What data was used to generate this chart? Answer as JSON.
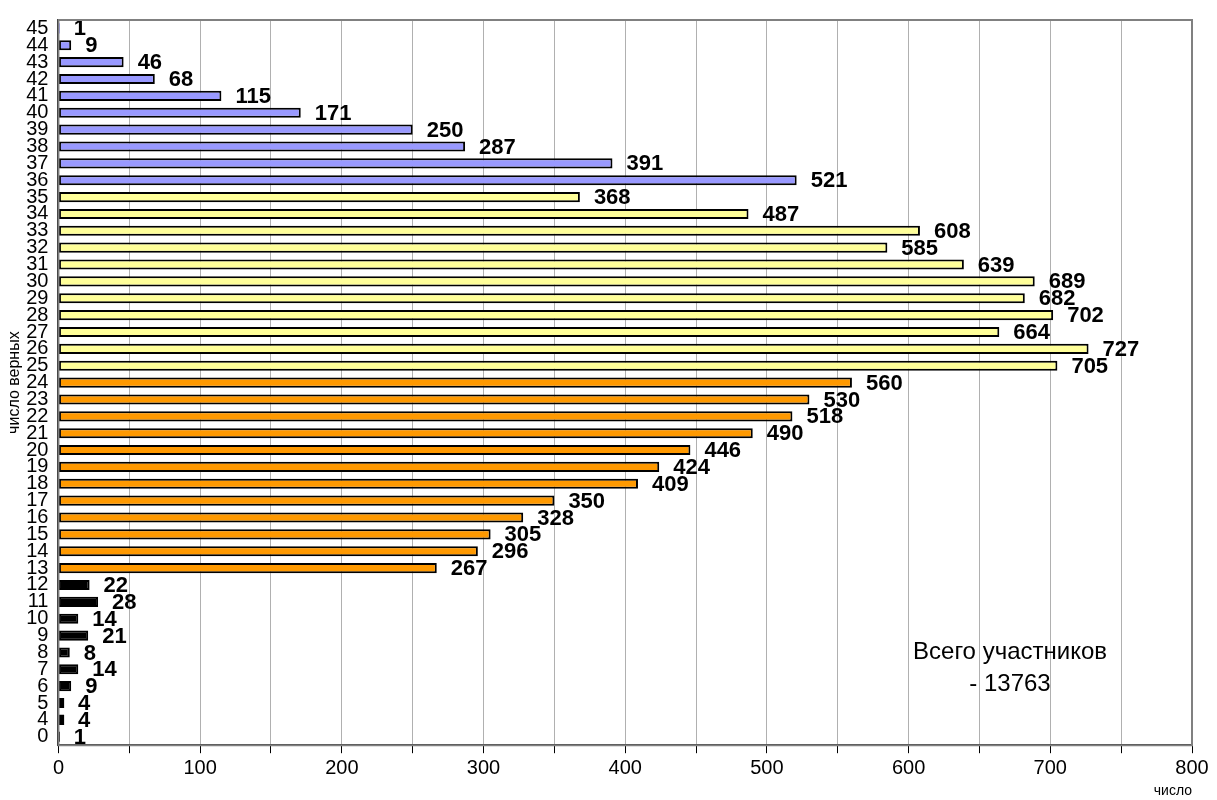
{
  "chart_data": {
    "type": "bar",
    "orientation": "horizontal",
    "xlabel": "число",
    "ylabel": "число верных",
    "categories": [
      "45",
      "44",
      "43",
      "42",
      "41",
      "40",
      "39",
      "38",
      "37",
      "36",
      "35",
      "34",
      "33",
      "32",
      "31",
      "30",
      "29",
      "28",
      "27",
      "26",
      "25",
      "24",
      "23",
      "22",
      "21",
      "20",
      "19",
      "18",
      "17",
      "16",
      "15",
      "14",
      "13",
      "12",
      "11",
      "10",
      "9",
      "8",
      "7",
      "6",
      "5",
      "4",
      "0"
    ],
    "values": [
      1,
      9,
      46,
      68,
      115,
      171,
      250,
      287,
      391,
      521,
      368,
      487,
      608,
      585,
      639,
      689,
      682,
      702,
      664,
      727,
      705,
      560,
      530,
      518,
      490,
      446,
      424,
      409,
      350,
      328,
      305,
      296,
      267,
      22,
      28,
      14,
      21,
      8,
      14,
      9,
      4,
      4,
      1
    ],
    "colors": [
      "#9999ff",
      "#9999ff",
      "#9999ff",
      "#9999ff",
      "#9999ff",
      "#9999ff",
      "#9999ff",
      "#9999ff",
      "#9999ff",
      "#9999ff",
      "#ffff99",
      "#ffff99",
      "#ffff99",
      "#ffff99",
      "#ffff99",
      "#ffff99",
      "#ffff99",
      "#ffff99",
      "#ffff99",
      "#ffff99",
      "#ffff99",
      "#ff9900",
      "#ff9900",
      "#ff9900",
      "#ff9900",
      "#ff9900",
      "#ff9900",
      "#ff9900",
      "#ff9900",
      "#ff9900",
      "#ff9900",
      "#ff9900",
      "#ff9900",
      "#000000",
      "#000000",
      "#000000",
      "#000000",
      "#000000",
      "#000000",
      "#000000",
      "#000000",
      "#000000",
      "#000000"
    ],
    "xlim": [
      0,
      800
    ],
    "xticks": [
      0,
      {
        "value": 50,
        "label": null
      },
      100,
      {
        "value": 150,
        "label": null
      },
      200,
      {
        "value": 250,
        "label": null
      },
      300,
      {
        "value": 350,
        "label": null
      },
      400,
      {
        "value": 450,
        "label": null
      },
      500,
      {
        "value": 550,
        "label": null
      },
      600,
      {
        "value": 650,
        "label": null
      },
      700,
      {
        "value": 750,
        "label": null
      },
      800
    ],
    "grid": "x",
    "legend": false,
    "data_labels": true,
    "annotations": [
      "Всего участников\n- 13763"
    ]
  }
}
